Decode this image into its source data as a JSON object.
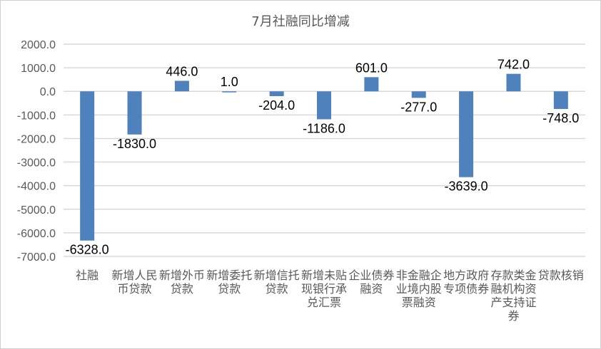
{
  "chart_data": {
    "type": "bar",
    "title": "7月社融同比增减",
    "categories": [
      "社融",
      "新增人民币贷款",
      "新增外币贷款",
      "新增委托贷款",
      "新增信托贷款",
      "新增未贴现银行承兑汇票",
      "企业债券融资",
      "非金融企业境内股票融资",
      "地方政府专项债券",
      "存款类金融机构资产支持证券",
      "贷款核销"
    ],
    "values": [
      -6328.0,
      -1830.0,
      446.0,
      1.0,
      -204.0,
      -1186.0,
      601.0,
      -277.0,
      -3639.0,
      742.0,
      -748.0
    ],
    "xlabel": "",
    "ylabel": "",
    "ylim": [
      -7000,
      2000
    ],
    "yticks": [
      2000,
      1000,
      0,
      -1000,
      -2000,
      -3000,
      -4000,
      -5000,
      -6000,
      -7000
    ],
    "grid": true,
    "legend": "none",
    "bar_color": "#4f81bd",
    "data_labels": true
  }
}
